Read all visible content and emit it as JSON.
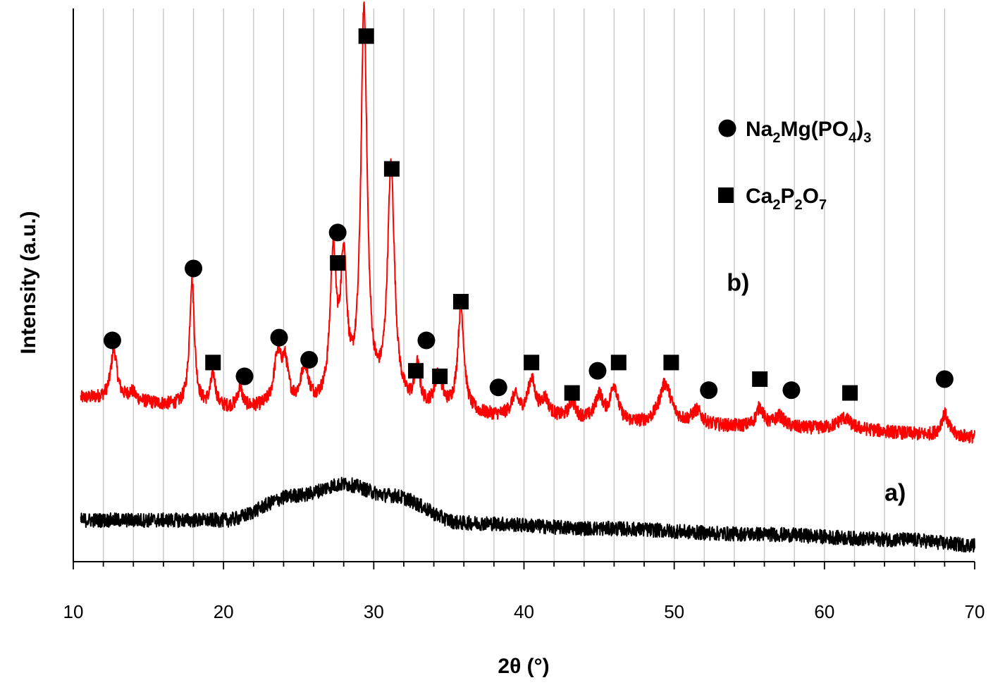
{
  "chart_data": {
    "type": "line",
    "title": "",
    "xlabel": "2θ (°)",
    "ylabel": "Intensity (a.u.)",
    "xlim": [
      10,
      70
    ],
    "ylim": [
      0,
      100
    ],
    "x_ticks": [
      10,
      20,
      30,
      40,
      50,
      60,
      70
    ],
    "x_tick_labels": [
      "10",
      "20",
      "30",
      "40",
      "50",
      "60",
      "70"
    ],
    "grid": {
      "vertical_every": 2,
      "horizontal": false
    },
    "y_ticks_shown": false,
    "legend_placement": "top-right",
    "legend": [
      {
        "marker": "circle",
        "base": "Na",
        "sub1": "2",
        "mid": "Mg(PO",
        "sub2": "4",
        "end": ")",
        "sub3": "3"
      },
      {
        "marker": "square",
        "base": "Ca",
        "sub1": "2",
        "mid": "P",
        "sub2": "2",
        "end": "O",
        "sub3": "7"
      }
    ],
    "series": [
      {
        "name": "b)",
        "color": "#ff0000",
        "label_at": [
          53.5,
          49
        ],
        "baseline": [
          [
            10.5,
            29.5
          ],
          [
            20,
            27.5
          ],
          [
            30,
            27.5
          ],
          [
            40,
            26
          ],
          [
            50,
            24.5
          ],
          [
            60,
            24
          ],
          [
            70,
            22.5
          ]
        ],
        "noise": 1.2,
        "peaks": [
          {
            "x": 12.7,
            "h": 9,
            "w": 0.25
          },
          {
            "x": 13.9,
            "h": 1.5,
            "w": 0.3
          },
          {
            "x": 17.9,
            "h": 23,
            "w": 0.2
          },
          {
            "x": 19.3,
            "h": 6,
            "w": 0.2
          },
          {
            "x": 21.1,
            "h": 3.5,
            "w": 0.2
          },
          {
            "x": 23.6,
            "h": 9,
            "w": 0.3
          },
          {
            "x": 24.1,
            "h": 7,
            "w": 0.25
          },
          {
            "x": 25.4,
            "h": 7,
            "w": 0.3
          },
          {
            "x": 27.3,
            "h": 26,
            "w": 0.25
          },
          {
            "x": 28.0,
            "h": 25,
            "w": 0.25
          },
          {
            "x": 29.35,
            "h": 71,
            "w": 0.25
          },
          {
            "x": 31.15,
            "h": 43,
            "w": 0.28
          },
          {
            "x": 32.9,
            "h": 7,
            "w": 0.2
          },
          {
            "x": 34.3,
            "h": 6,
            "w": 0.3
          },
          {
            "x": 35.8,
            "h": 19,
            "w": 0.25
          },
          {
            "x": 39.4,
            "h": 3.5,
            "w": 0.3
          },
          {
            "x": 40.5,
            "h": 6.5,
            "w": 0.3
          },
          {
            "x": 41.4,
            "h": 3,
            "w": 0.3
          },
          {
            "x": 43.2,
            "h": 3,
            "w": 0.25
          },
          {
            "x": 45.0,
            "h": 4.5,
            "w": 0.3
          },
          {
            "x": 46.0,
            "h": 6.5,
            "w": 0.3
          },
          {
            "x": 49.4,
            "h": 7.5,
            "w": 0.5
          },
          {
            "x": 51.5,
            "h": 2.5,
            "w": 0.4
          },
          {
            "x": 55.7,
            "h": 3.5,
            "w": 0.3
          },
          {
            "x": 57.0,
            "h": 2,
            "w": 0.4
          },
          {
            "x": 61.3,
            "h": 2,
            "w": 0.5
          },
          {
            "x": 68.0,
            "h": 4,
            "w": 0.3
          }
        ]
      },
      {
        "name": "a)",
        "color": "#000000",
        "label_at": [
          64,
          11
        ],
        "baseline": [
          [
            10.5,
            7.5
          ],
          [
            20,
            7.5
          ],
          [
            25,
            12
          ],
          [
            28,
            14
          ],
          [
            31,
            12
          ],
          [
            36,
            7
          ],
          [
            45,
            6
          ],
          [
            55,
            5
          ],
          [
            65,
            4
          ],
          [
            70,
            3
          ]
        ],
        "noise": 1.3,
        "peaks": []
      }
    ],
    "markers": [
      {
        "type": "circle",
        "x": 12.6,
        "y": 40
      },
      {
        "type": "circle",
        "x": 18.0,
        "y": 53
      },
      {
        "type": "square",
        "x": 19.3,
        "y": 36
      },
      {
        "type": "circle",
        "x": 21.4,
        "y": 33.5
      },
      {
        "type": "circle",
        "x": 23.7,
        "y": 40.5
      },
      {
        "type": "circle",
        "x": 25.7,
        "y": 36.5
      },
      {
        "type": "square",
        "x": 27.6,
        "y": 54
      },
      {
        "type": "circle",
        "x": 27.6,
        "y": 59.5
      },
      {
        "type": "square",
        "x": 29.5,
        "y": 95
      },
      {
        "type": "square",
        "x": 31.2,
        "y": 71
      },
      {
        "type": "square",
        "x": 32.8,
        "y": 34.5
      },
      {
        "type": "circle",
        "x": 33.5,
        "y": 40
      },
      {
        "type": "square",
        "x": 34.4,
        "y": 33.5
      },
      {
        "type": "square",
        "x": 35.8,
        "y": 47
      },
      {
        "type": "circle",
        "x": 38.3,
        "y": 31.5
      },
      {
        "type": "square",
        "x": 40.5,
        "y": 36
      },
      {
        "type": "square",
        "x": 43.2,
        "y": 30.5
      },
      {
        "type": "circle",
        "x": 44.9,
        "y": 34.5
      },
      {
        "type": "square",
        "x": 46.3,
        "y": 36
      },
      {
        "type": "square",
        "x": 49.8,
        "y": 36
      },
      {
        "type": "circle",
        "x": 52.3,
        "y": 31
      },
      {
        "type": "square",
        "x": 55.7,
        "y": 33
      },
      {
        "type": "circle",
        "x": 57.8,
        "y": 31
      },
      {
        "type": "square",
        "x": 61.7,
        "y": 30.5
      },
      {
        "type": "circle",
        "x": 68.0,
        "y": 33
      }
    ]
  }
}
